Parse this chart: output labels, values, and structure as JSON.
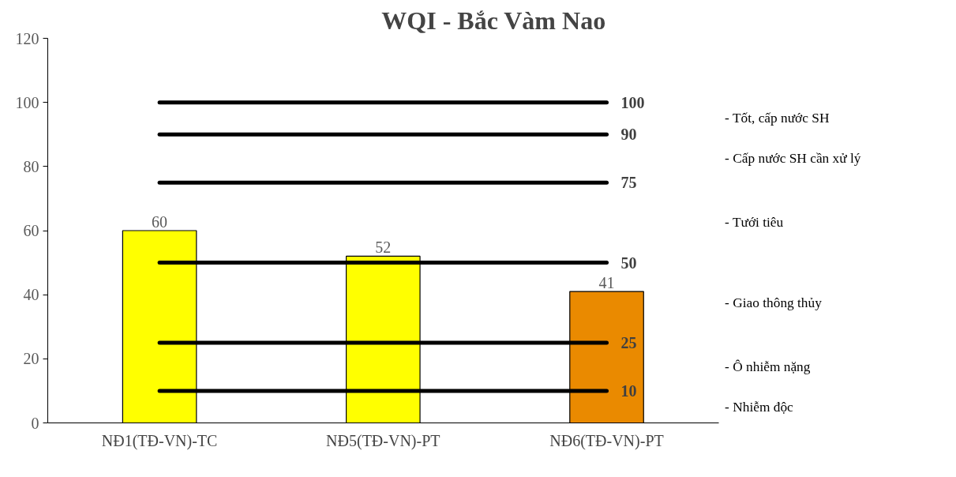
{
  "chart_data": {
    "type": "bar",
    "title": "WQI - Bắc Vàm Nao",
    "categories": [
      "NĐ1(TĐ-VN)-TC",
      "NĐ5(TĐ-VN)-PT",
      "NĐ6(TĐ-VN)-PT"
    ],
    "values": [
      60,
      52,
      41
    ],
    "colors": [
      "#ffff00",
      "#ffff00",
      "#ea8a00"
    ],
    "data_labels": true,
    "ylim": [
      0,
      120
    ],
    "yticks": [
      0,
      20,
      40,
      60,
      80,
      100,
      120
    ],
    "grid": false,
    "ref_lines": [
      {
        "axis": "y",
        "value": 100,
        "label": "100",
        "color": "#000000"
      },
      {
        "axis": "y",
        "value": 90,
        "label": "90",
        "color": "#000000"
      },
      {
        "axis": "y",
        "value": 75,
        "label": "75",
        "color": "#000000"
      },
      {
        "axis": "y",
        "value": 50,
        "label": "50",
        "color": "#000000"
      },
      {
        "axis": "y",
        "value": 25,
        "label": "25",
        "color": "#000000"
      },
      {
        "axis": "y",
        "value": 10,
        "label": "10",
        "color": "#000000"
      }
    ],
    "annotations": [
      "- Tốt, cấp nước SH",
      "- Cấp nước SH cần xử lý",
      "- Tưới tiêu",
      "- Giao thông thủy",
      "- Ô nhiễm nặng",
      "- Nhiễm độc"
    ]
  }
}
